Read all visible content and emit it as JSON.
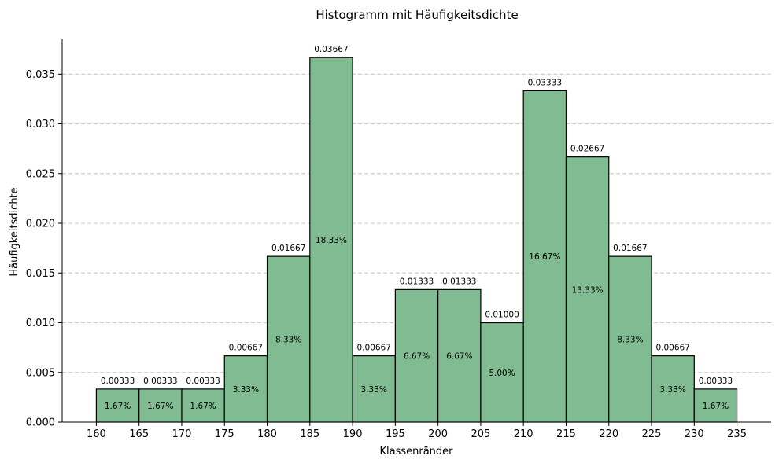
{
  "chart_data": {
    "type": "bar",
    "title": "Histogramm mit Häufigkeitsdichte",
    "xlabel": "Klassenränder",
    "ylabel": "Häufigkeitsdichte",
    "bar_color": "#80bb91",
    "edges": [
      160,
      165,
      170,
      175,
      180,
      185,
      190,
      195,
      200,
      205,
      210,
      215,
      220,
      225,
      230,
      235
    ],
    "values": [
      0.00333,
      0.00333,
      0.00333,
      0.00667,
      0.01667,
      0.03667,
      0.00667,
      0.01333,
      0.01333,
      0.01,
      0.03333,
      0.02667,
      0.01667,
      0.00667,
      0.00333
    ],
    "value_labels": [
      "0.00333",
      "0.00333",
      "0.00333",
      "0.00667",
      "0.01667",
      "0.03667",
      "0.00667",
      "0.01333",
      "0.01333",
      "0.01000",
      "0.03333",
      "0.02667",
      "0.01667",
      "0.00667",
      "0.00333"
    ],
    "percent_labels": [
      "1.67%",
      "1.67%",
      "1.67%",
      "3.33%",
      "8.33%",
      "18.33%",
      "3.33%",
      "6.67%",
      "6.67%",
      "5.00%",
      "16.67%",
      "13.33%",
      "8.33%",
      "3.33%",
      "1.67%"
    ],
    "x_ticks": [
      "160",
      "165",
      "170",
      "175",
      "180",
      "185",
      "190",
      "195",
      "200",
      "205",
      "210",
      "215",
      "220",
      "225",
      "230",
      "235"
    ],
    "y_ticks": [
      0,
      0.005,
      0.01,
      0.015,
      0.02,
      0.025,
      0.03,
      0.035
    ],
    "y_tick_labels": [
      "0.000",
      "0.005",
      "0.010",
      "0.015",
      "0.020",
      "0.025",
      "0.030",
      "0.035"
    ],
    "xlim": [
      156,
      239
    ],
    "ylim": [
      0,
      0.0385
    ],
    "grid": "y-dashed"
  }
}
